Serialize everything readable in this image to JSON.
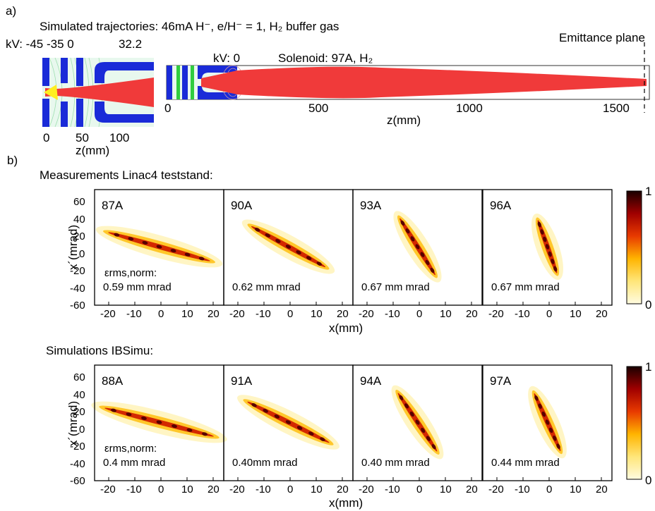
{
  "part_a": {
    "letter": "a)",
    "title": "Simulated trajectories: 46mA H⁻, e/H⁻ = 1, H₂ buffer gas",
    "left_voltages": "kV: -45 -35 0",
    "left_voltage_extra": "32.2",
    "right_voltage": "kV: 0",
    "solenoid": "Solenoid: 97A, H₂",
    "emittance_plane": "Emittance plane",
    "left_z_ticks": [
      "0",
      "50",
      "100"
    ],
    "left_z_label": "z(mm)",
    "right_z_ticks": [
      "0",
      "500",
      "1000",
      "1500"
    ],
    "right_z_label": "z(mm)"
  },
  "part_b": {
    "letter": "b)",
    "measure_title": "Measurements Linac4 teststand:",
    "sim_title": "Simulations IBSimu:",
    "y_label": "x´(mrad)",
    "x_label": "x(mm)",
    "y_ticks": [
      "60",
      "40",
      "20",
      "0",
      "-20",
      "-40",
      "-60"
    ],
    "x_ticks": [
      "-20",
      "-10",
      "0",
      "10",
      "20"
    ],
    "emit_label": "εrms,norm:",
    "colorbar_max": "1",
    "colorbar_min": "0",
    "measurements": [
      {
        "current": "87A",
        "emittance": "0.59 mm mrad"
      },
      {
        "current": "90A",
        "emittance": "0.62 mm mrad"
      },
      {
        "current": "93A",
        "emittance": "0.67 mm mrad"
      },
      {
        "current": "96A",
        "emittance": "0.67 mm mrad"
      }
    ],
    "simulations": [
      {
        "current": "88A",
        "emittance": "0.4 mm mrad"
      },
      {
        "current": "91A",
        "emittance": "0.40mm mrad"
      },
      {
        "current": "94A",
        "emittance": "0.40 mm mrad"
      },
      {
        "current": "97A",
        "emittance": "0.44 mm mrad"
      }
    ]
  },
  "colors": {
    "electrode": "#1a2bd8",
    "beam": "#f03a3a",
    "field_lines": "#9fe0b0",
    "colormap": [
      "#fffbe0",
      "#ffe67a",
      "#ffb400",
      "#e83a00",
      "#a00000",
      "#1a0000"
    ]
  }
}
